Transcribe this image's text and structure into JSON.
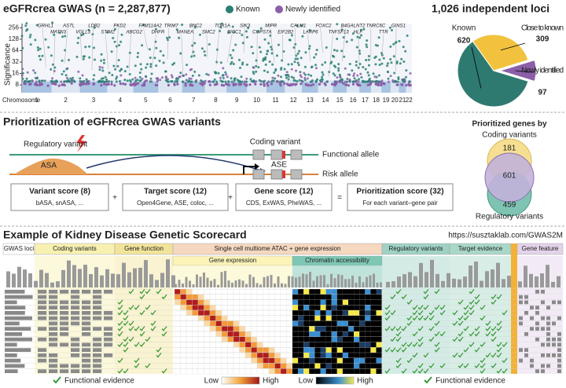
{
  "manhattan": {
    "title": "eGFRcrea GWAS (n = 2,287,877)",
    "legend": [
      "Known",
      "Newly identified"
    ],
    "colors": [
      "#2a7f74",
      "#8a5fa8"
    ],
    "ylabel": "Significance",
    "ylim": [
      5,
      330
    ],
    "yticks": [
      8,
      16,
      32,
      64,
      128,
      256
    ],
    "log": true,
    "xlabel": "Chromosome",
    "chromosomes": [
      "1",
      "2",
      "3",
      "4",
      "5",
      "6",
      "7",
      "8",
      "9",
      "10",
      "11",
      "12",
      "13",
      "14",
      "15",
      "16",
      "17",
      "18",
      "19",
      "20",
      "21",
      "22"
    ],
    "genes": [
      "GRHL1",
      "MATN3",
      "ASTL",
      "VGLL3",
      "LDB2",
      "STIM2",
      "PKD2",
      "ABCG2",
      "FAM114A2",
      "DHFR",
      "TRIM7",
      "MANEA",
      "BNC2",
      "SMC2",
      "TOR1A",
      "BICC1",
      "SIK3",
      "COPS7A",
      "MIPR",
      "EIF2B2",
      "CALM1",
      "LARP6",
      "FOXC2",
      "TNFSF13",
      "B4GALNT2",
      "HLF",
      "TNRC6C",
      "TTR",
      "GINS1"
    ]
  },
  "loci": {
    "type": "pie",
    "title": "1,026 independent loci",
    "slices": [
      {
        "name": "Known",
        "value": 620,
        "color": "#2e7a70"
      },
      {
        "name": "Close to known",
        "value": 309,
        "color": "#f2c23e"
      },
      {
        "name": "Newly identified",
        "value": 97,
        "color": "#8a5fa8"
      }
    ]
  },
  "prioritization": {
    "title": "Prioritization of eGFRcrea GWAS variants",
    "regulatory": "Regulatory variant",
    "asa": "ASA",
    "coding": "Coding variant",
    "functional": "Functional allele",
    "ase": "ASE",
    "risk": "Risk allele",
    "scores": [
      {
        "name": "Variant score (8)",
        "detail": "bASA, snASA, ..."
      },
      {
        "name": "Target score (12)",
        "detail": "Open4Gene, ASE, coloc, ..."
      },
      {
        "name": "Gene score (12)",
        "detail": "CDS, ExWAS, PheWAS, ..."
      },
      {
        "name": "Prioritization score (32)",
        "detail": "For each variant–gene pair"
      }
    ],
    "operators": [
      "+",
      "+",
      "="
    ]
  },
  "venn": {
    "title": "Prioritized genes by",
    "top": "Coding variants",
    "bottom": "Regulatory variants",
    "counts": [
      "181",
      "601",
      "459"
    ]
  },
  "scorecard": {
    "title": "Example of Kidney Disease Genetic Scorecard",
    "url": "https://susztaklab.com/GWAS2M",
    "groups": [
      "GWAS loci",
      "Coding variants",
      "Gene function",
      "Single cell multiome ATAC + gene expression",
      "Regulatory variants",
      "Target evidence",
      "Gene feature"
    ],
    "subgroups": [
      "Gene expression",
      "Chromatin accessibility"
    ],
    "legend": [
      "Functional evidence",
      "Low",
      "High",
      "Low",
      "High",
      "Functional evidence"
    ]
  }
}
